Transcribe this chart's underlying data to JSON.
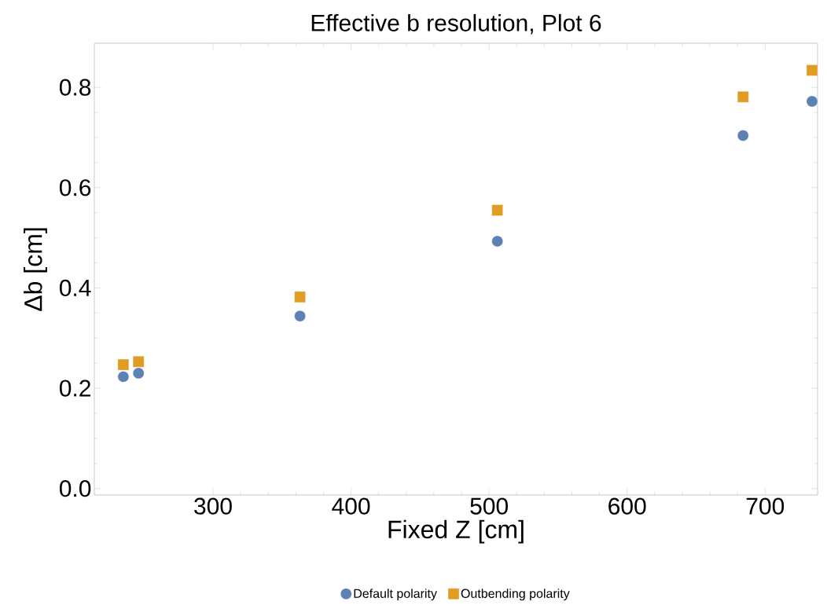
{
  "chart_data": {
    "type": "scatter",
    "title": "Effective b resolution, Plot 6",
    "xlabel": "Fixed Z [cm]",
    "ylabel": "Δb [cm]",
    "x": [
      235,
      246,
      363,
      506,
      684,
      734
    ],
    "series": [
      {
        "name": "Default polarity",
        "color": "#5e81b5",
        "marker": "circle",
        "values": [
          0.223,
          0.23,
          0.344,
          0.493,
          0.704,
          0.772
        ]
      },
      {
        "name": "Outbending polarity",
        "color": "#e19c24",
        "marker": "square",
        "values": [
          0.247,
          0.253,
          0.382,
          0.555,
          0.781,
          0.834
        ]
      }
    ],
    "xlim": [
      214,
      738
    ],
    "ylim": [
      -0.013,
      0.888
    ],
    "xticks": [
      300,
      400,
      500,
      600,
      700
    ],
    "yticks": [
      {
        "value": 0,
        "label": "0.0"
      },
      {
        "value": 0.2,
        "label": "0.2"
      },
      {
        "value": 0.4,
        "label": "0.4"
      },
      {
        "value": 0.6,
        "label": "0.6"
      },
      {
        "value": 0.8,
        "label": "0.8"
      }
    ],
    "grid": false,
    "legend": "bottom"
  }
}
